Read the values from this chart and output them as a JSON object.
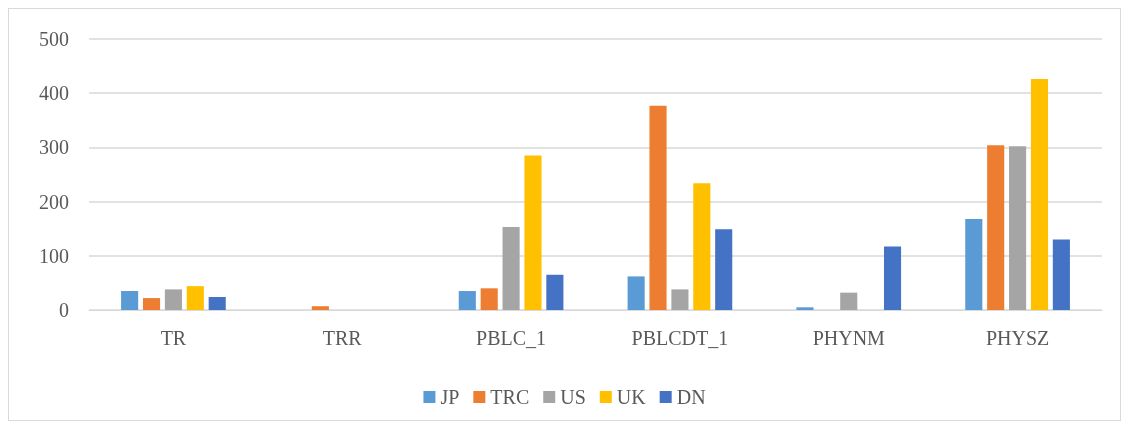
{
  "chart_data": {
    "type": "bar",
    "categories": [
      "TR",
      "TRR",
      "PBLC_1",
      "PBLCDT_1",
      "PHYNM",
      "PHYSZ"
    ],
    "series": [
      {
        "name": "JP",
        "color": "#5b9bd5",
        "values": [
          35,
          null,
          35,
          62,
          5,
          168
        ]
      },
      {
        "name": "TRC",
        "color": "#ed7d31",
        "values": [
          22,
          7,
          40,
          377,
          null,
          304
        ]
      },
      {
        "name": "US",
        "color": "#a5a5a5",
        "values": [
          38,
          null,
          153,
          38,
          32,
          302
        ]
      },
      {
        "name": "UK",
        "color": "#ffc000",
        "values": [
          44,
          null,
          285,
          234,
          null,
          426
        ]
      },
      {
        "name": "DN",
        "color": "#4472c4",
        "values": [
          24,
          null,
          65,
          149,
          117,
          130
        ]
      }
    ],
    "ylim": [
      0,
      500
    ],
    "yticks": [
      0,
      100,
      200,
      300,
      400,
      500
    ],
    "grid": "y",
    "legend": "bottom"
  }
}
